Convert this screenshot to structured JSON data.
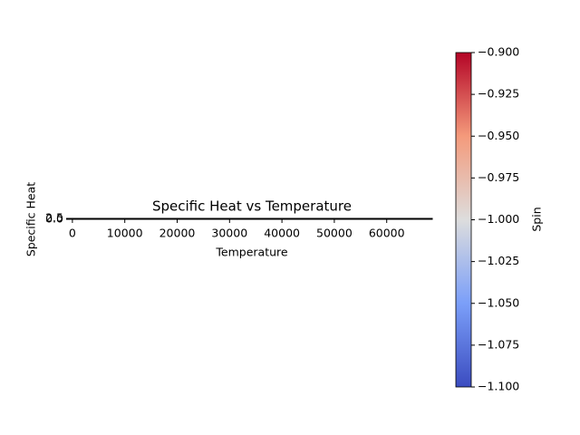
{
  "chart_data": {
    "type": "scatter",
    "title": "Specific Heat vs Temperature",
    "xlabel": "Temperature",
    "ylabel": "Specific Heat",
    "x": [],
    "values": [],
    "xlim": [
      -500,
      68700
    ],
    "xticks": [
      0,
      10000,
      20000,
      30000,
      40000,
      50000,
      60000
    ],
    "ylim": [
      0,
      2.5
    ],
    "yticks": [
      {
        "value": 0,
        "label": "0.0"
      },
      {
        "value": 2.5,
        "label": "2.5"
      }
    ],
    "colorbar": {
      "label": "Spin",
      "cmap": "coolwarm",
      "colors": [
        "#3b4cc0",
        "#7b9ff9",
        "#dddddd",
        "#f49a7b",
        "#b40426"
      ],
      "lim": [
        -1.1,
        -0.9
      ],
      "ticks": [
        {
          "value": -1.1,
          "label": "−1.100"
        },
        {
          "value": -1.075,
          "label": "−1.075"
        },
        {
          "value": -1.05,
          "label": "−1.050"
        },
        {
          "value": -1.025,
          "label": "−1.025"
        },
        {
          "value": -1.0,
          "label": "−1.000"
        },
        {
          "value": -0.975,
          "label": "−0.975"
        },
        {
          "value": -0.95,
          "label": "−0.950"
        },
        {
          "value": -0.925,
          "label": "−0.925"
        },
        {
          "value": -0.9,
          "label": "−0.900"
        }
      ]
    }
  }
}
